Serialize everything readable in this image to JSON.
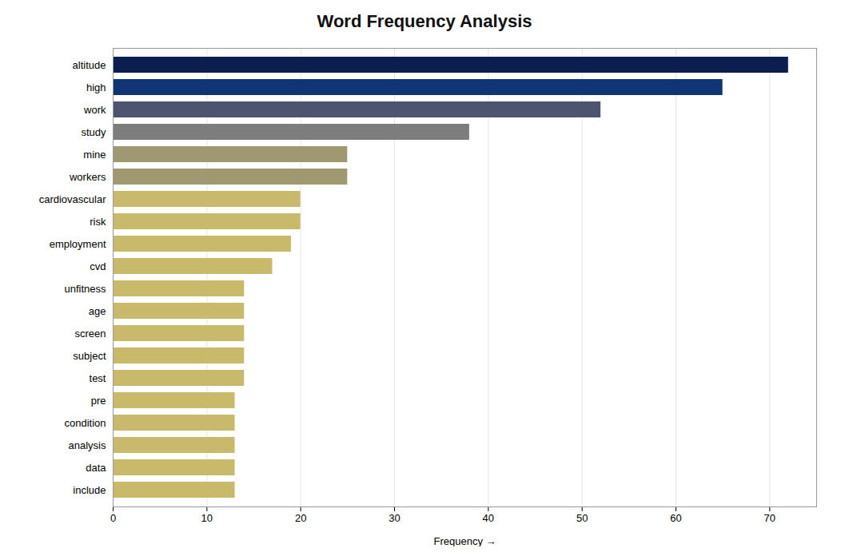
{
  "chart_data": {
    "type": "bar",
    "orientation": "horizontal",
    "title": "Word Frequency Analysis",
    "xlabel": "Frequency",
    "categories": [
      "include",
      "data",
      "analysis",
      "condition",
      "pre",
      "test",
      "subject",
      "screen",
      "age",
      "unfitness",
      "cvd",
      "employment",
      "risk",
      "cardiovascular",
      "workers",
      "mine",
      "study",
      "work",
      "high",
      "altitude"
    ],
    "values": [
      13,
      13,
      13,
      13,
      13,
      14,
      14,
      14,
      14,
      14,
      17,
      19,
      20,
      20,
      25,
      25,
      38,
      52,
      65,
      72
    ],
    "colors": [
      "#c9b96b",
      "#c9b96b",
      "#c9b96b",
      "#c9b96b",
      "#c9b96b",
      "#c9b96b",
      "#c9b96b",
      "#c9b96b",
      "#c9b96b",
      "#c9b96b",
      "#c9b96b",
      "#c9b96b",
      "#c9b96b",
      "#c9b96b",
      "#a09870",
      "#a09870",
      "#7d7d7d",
      "#4d5470",
      "#103575",
      "#0c1e4f"
    ],
    "xlim": [
      0,
      75
    ],
    "xticks": [
      0,
      10,
      20,
      30,
      40,
      50,
      60,
      70
    ],
    "grid": true
  }
}
